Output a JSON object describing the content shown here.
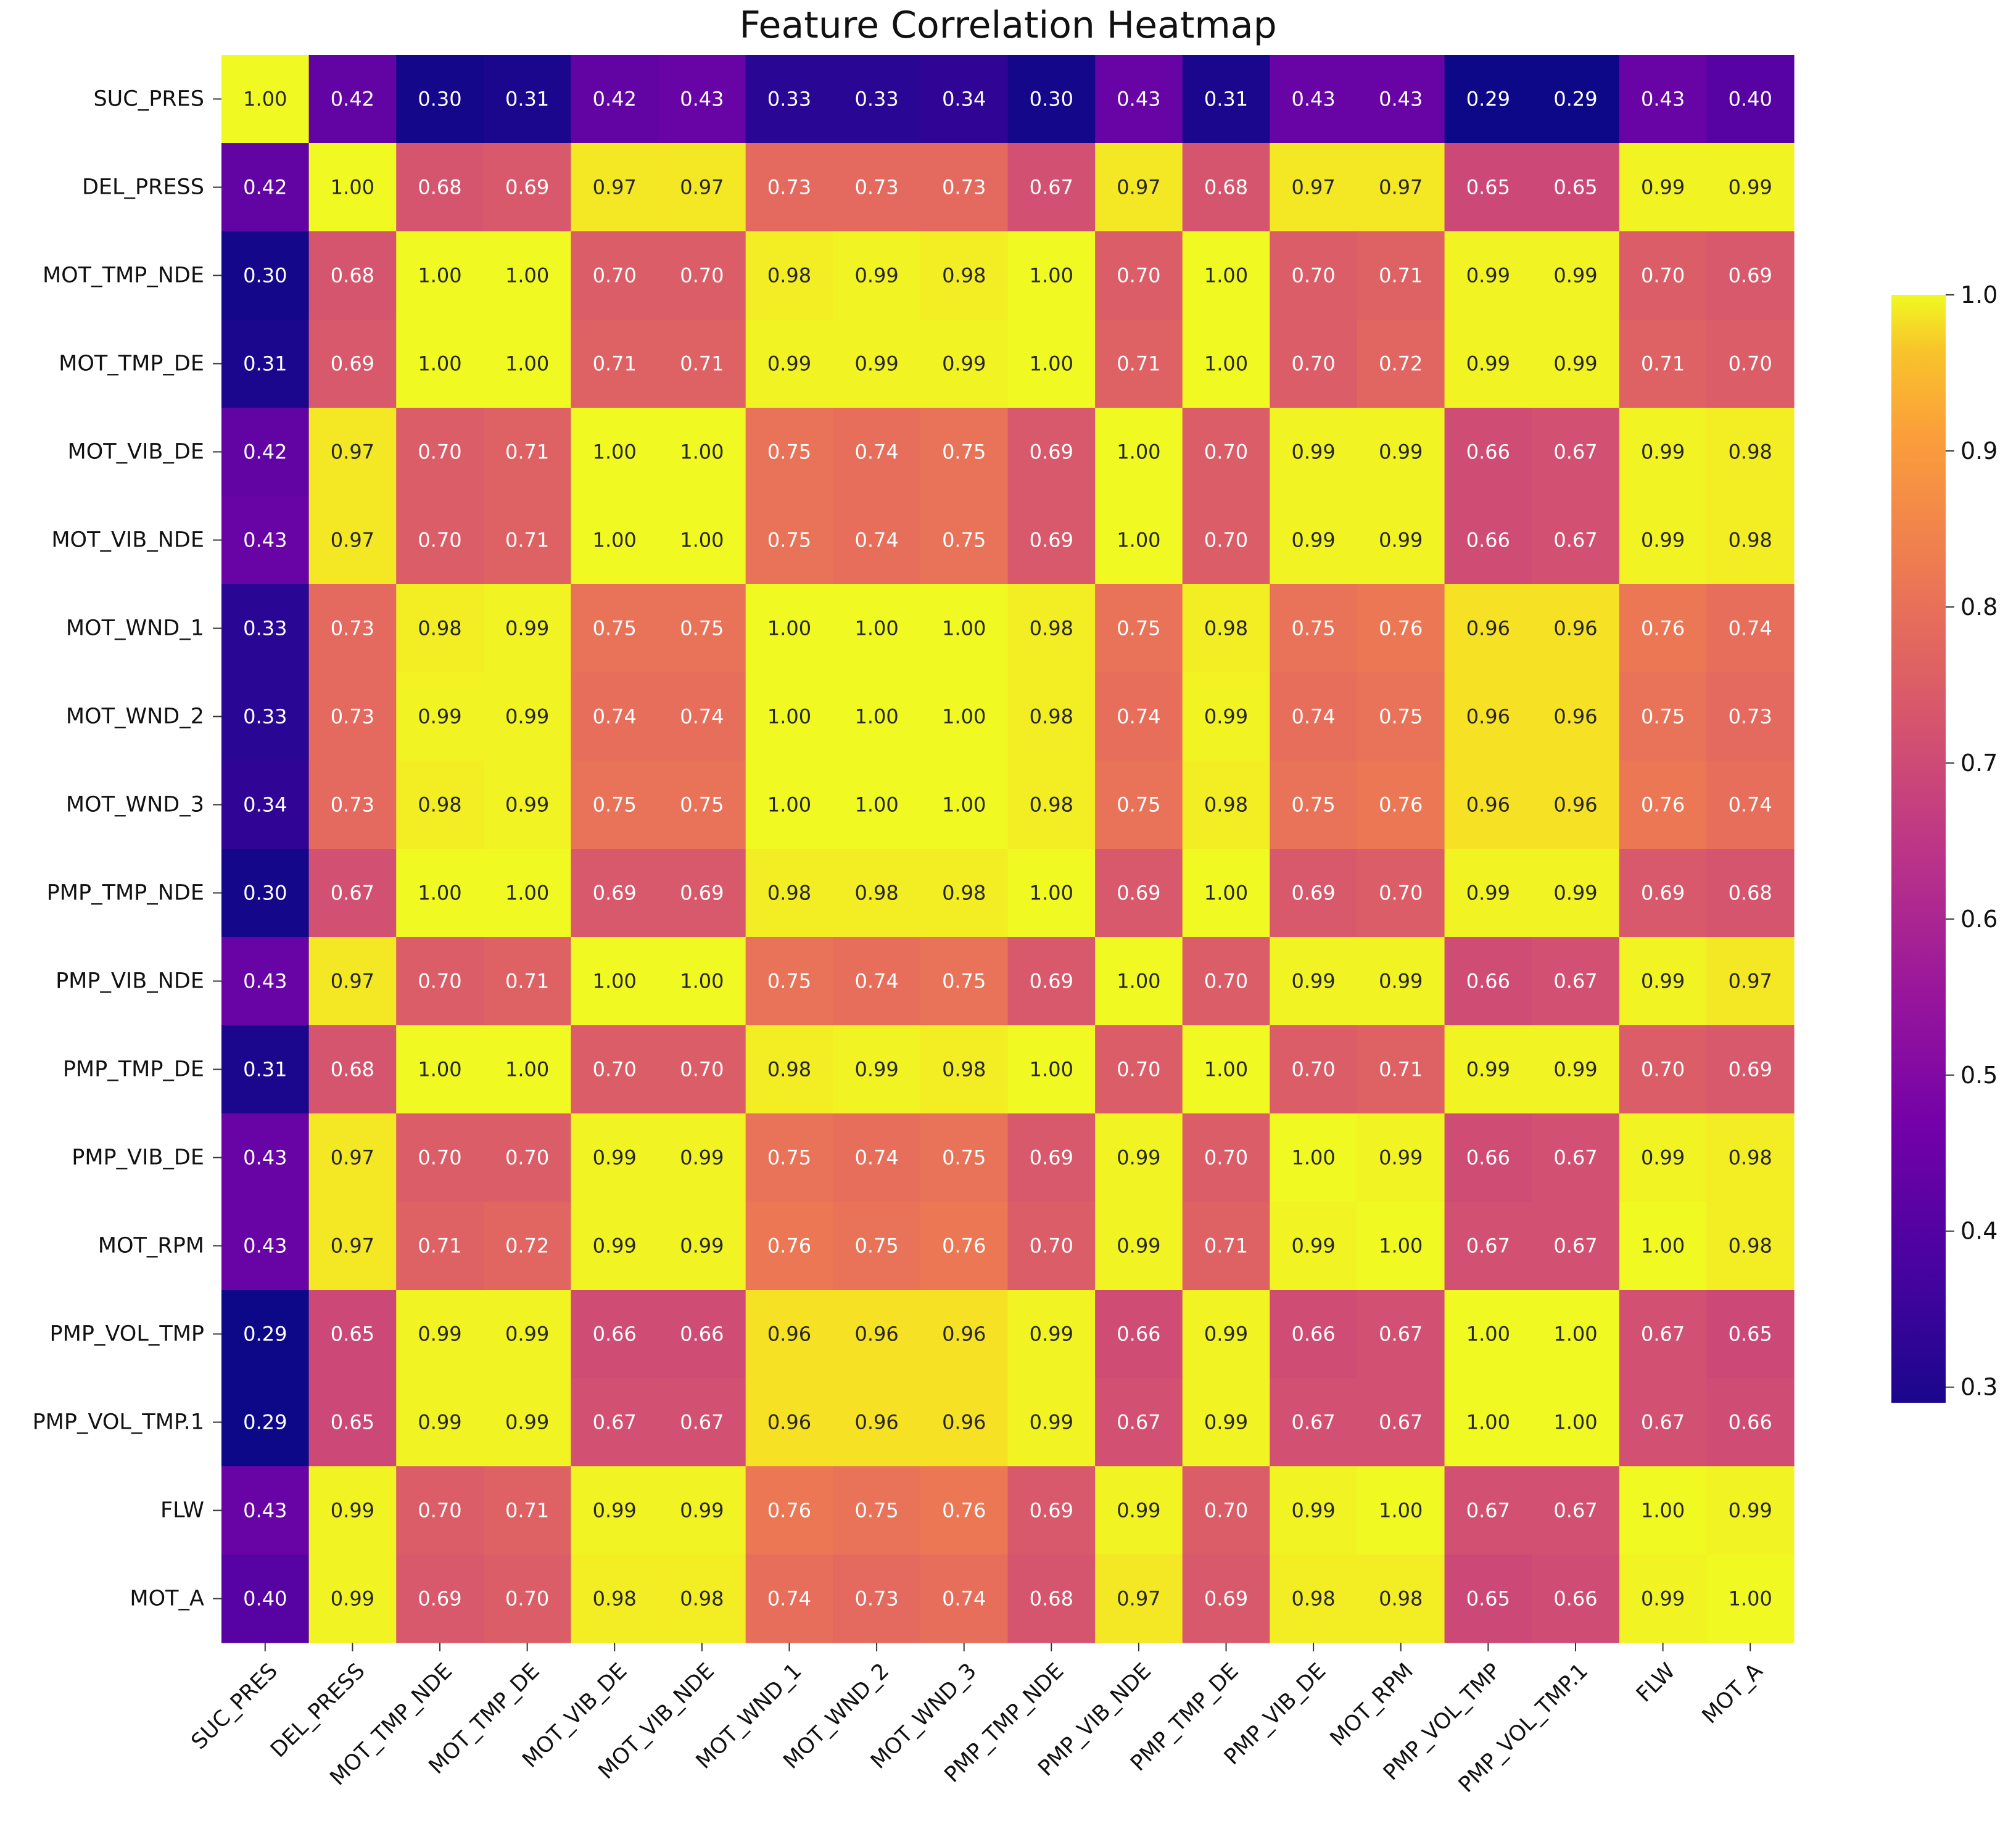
{
  "chart_data": {
    "type": "heatmap",
    "title": "Feature Correlation Heatmap",
    "xlabel": "",
    "ylabel": "",
    "colormap": "plasma",
    "value_range": [
      0.29,
      1.0
    ],
    "rows": [
      "SUC_PRES",
      "DEL_PRESS",
      "MOT_TMP_NDE",
      "MOT_TMP_DE",
      "MOT_VIB_DE",
      "MOT_VIB_NDE",
      "MOT_WND_1",
      "MOT_WND_2",
      "MOT_WND_3",
      "PMP_TMP_NDE",
      "PMP_VIB_NDE",
      "PMP_TMP_DE",
      "PMP_VIB_DE",
      "MOT_RPM",
      "PMP_VOL_TMP",
      "PMP_VOL_TMP.1",
      "FLW",
      "MOT_A"
    ],
    "columns": [
      "SUC_PRES",
      "DEL_PRESS",
      "MOT_TMP_NDE",
      "MOT_TMP_DE",
      "MOT_VIB_DE",
      "MOT_VIB_NDE",
      "MOT_WND_1",
      "MOT_WND_2",
      "MOT_WND_3",
      "PMP_TMP_NDE",
      "PMP_VIB_NDE",
      "PMP_TMP_DE",
      "PMP_VIB_DE",
      "MOT_RPM",
      "PMP_VOL_TMP",
      "PMP_VOL_TMP.1",
      "FLW",
      "MOT_A"
    ],
    "values": [
      [
        1.0,
        0.42,
        0.3,
        0.31,
        0.42,
        0.43,
        0.33,
        0.33,
        0.34,
        0.3,
        0.43,
        0.31,
        0.43,
        0.43,
        0.29,
        0.29,
        0.43,
        0.4
      ],
      [
        0.42,
        1.0,
        0.68,
        0.69,
        0.97,
        0.97,
        0.73,
        0.73,
        0.73,
        0.67,
        0.97,
        0.68,
        0.97,
        0.97,
        0.65,
        0.65,
        0.99,
        0.99
      ],
      [
        0.3,
        0.68,
        1.0,
        1.0,
        0.7,
        0.7,
        0.98,
        0.99,
        0.98,
        1.0,
        0.7,
        1.0,
        0.7,
        0.71,
        0.99,
        0.99,
        0.7,
        0.69
      ],
      [
        0.31,
        0.69,
        1.0,
        1.0,
        0.71,
        0.71,
        0.99,
        0.99,
        0.99,
        1.0,
        0.71,
        1.0,
        0.7,
        0.72,
        0.99,
        0.99,
        0.71,
        0.7
      ],
      [
        0.42,
        0.97,
        0.7,
        0.71,
        1.0,
        1.0,
        0.75,
        0.74,
        0.75,
        0.69,
        1.0,
        0.7,
        0.99,
        0.99,
        0.66,
        0.67,
        0.99,
        0.98
      ],
      [
        0.43,
        0.97,
        0.7,
        0.71,
        1.0,
        1.0,
        0.75,
        0.74,
        0.75,
        0.69,
        1.0,
        0.7,
        0.99,
        0.99,
        0.66,
        0.67,
        0.99,
        0.98
      ],
      [
        0.33,
        0.73,
        0.98,
        0.99,
        0.75,
        0.75,
        1.0,
        1.0,
        1.0,
        0.98,
        0.75,
        0.98,
        0.75,
        0.76,
        0.96,
        0.96,
        0.76,
        0.74
      ],
      [
        0.33,
        0.73,
        0.99,
        0.99,
        0.74,
        0.74,
        1.0,
        1.0,
        1.0,
        0.98,
        0.74,
        0.99,
        0.74,
        0.75,
        0.96,
        0.96,
        0.75,
        0.73
      ],
      [
        0.34,
        0.73,
        0.98,
        0.99,
        0.75,
        0.75,
        1.0,
        1.0,
        1.0,
        0.98,
        0.75,
        0.98,
        0.75,
        0.76,
        0.96,
        0.96,
        0.76,
        0.74
      ],
      [
        0.3,
        0.67,
        1.0,
        1.0,
        0.69,
        0.69,
        0.98,
        0.98,
        0.98,
        1.0,
        0.69,
        1.0,
        0.69,
        0.7,
        0.99,
        0.99,
        0.69,
        0.68
      ],
      [
        0.43,
        0.97,
        0.7,
        0.71,
        1.0,
        1.0,
        0.75,
        0.74,
        0.75,
        0.69,
        1.0,
        0.7,
        0.99,
        0.99,
        0.66,
        0.67,
        0.99,
        0.97
      ],
      [
        0.31,
        0.68,
        1.0,
        1.0,
        0.7,
        0.7,
        0.98,
        0.99,
        0.98,
        1.0,
        0.7,
        1.0,
        0.7,
        0.71,
        0.99,
        0.99,
        0.7,
        0.69
      ],
      [
        0.43,
        0.97,
        0.7,
        0.7,
        0.99,
        0.99,
        0.75,
        0.74,
        0.75,
        0.69,
        0.99,
        0.7,
        1.0,
        0.99,
        0.66,
        0.67,
        0.99,
        0.98
      ],
      [
        0.43,
        0.97,
        0.71,
        0.72,
        0.99,
        0.99,
        0.76,
        0.75,
        0.76,
        0.7,
        0.99,
        0.71,
        0.99,
        1.0,
        0.67,
        0.67,
        1.0,
        0.98
      ],
      [
        0.29,
        0.65,
        0.99,
        0.99,
        0.66,
        0.66,
        0.96,
        0.96,
        0.96,
        0.99,
        0.66,
        0.99,
        0.66,
        0.67,
        1.0,
        1.0,
        0.67,
        0.65
      ],
      [
        0.29,
        0.65,
        0.99,
        0.99,
        0.67,
        0.67,
        0.96,
        0.96,
        0.96,
        0.99,
        0.67,
        0.99,
        0.67,
        0.67,
        1.0,
        1.0,
        0.67,
        0.66
      ],
      [
        0.43,
        0.99,
        0.7,
        0.71,
        0.99,
        0.99,
        0.76,
        0.75,
        0.76,
        0.69,
        0.99,
        0.7,
        0.99,
        1.0,
        0.67,
        0.67,
        1.0,
        0.99
      ],
      [
        0.4,
        0.99,
        0.69,
        0.7,
        0.98,
        0.98,
        0.74,
        0.73,
        0.74,
        0.68,
        0.97,
        0.69,
        0.98,
        0.98,
        0.65,
        0.66,
        0.99,
        1.0
      ]
    ],
    "annotation_format": "0.00",
    "colorbar": {
      "ticks": [
        1.0,
        0.9,
        0.8,
        0.7,
        0.6,
        0.5,
        0.4,
        0.3
      ],
      "tick_labels": [
        "1.0",
        "0.9",
        "0.8",
        "0.7",
        "0.6",
        "0.5",
        "0.4",
        "0.3"
      ]
    }
  }
}
